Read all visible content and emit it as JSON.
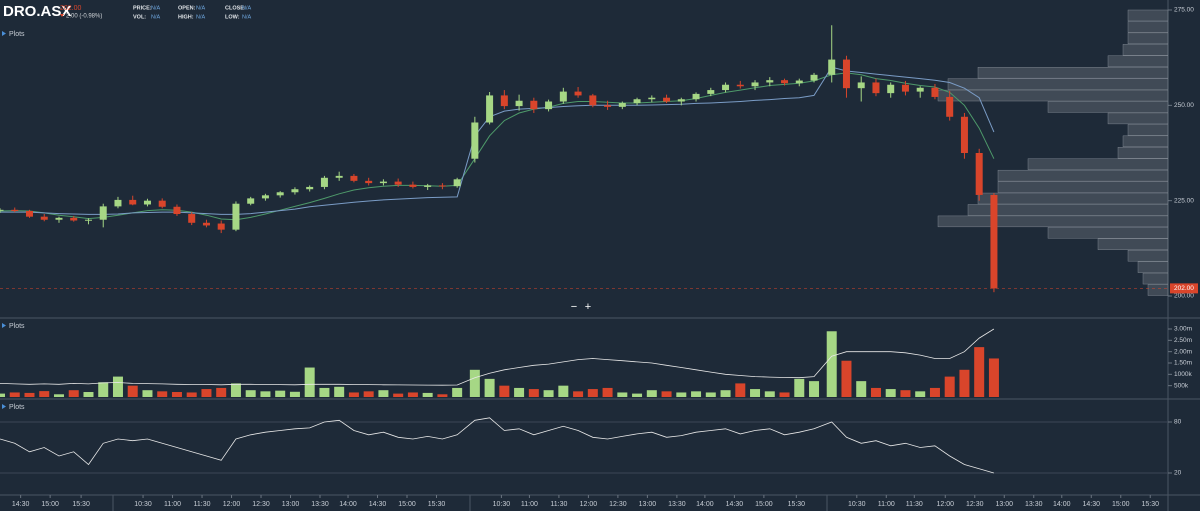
{
  "header": {
    "symbol": "DRO.ASX",
    "price": "202.00",
    "change": "2.00 (-0.98%)",
    "fields": [
      {
        "label": "PRICE:",
        "value": "N/A"
      },
      {
        "label": "VOL:",
        "value": "N/A"
      },
      {
        "label": "OPEN:",
        "value": "N/A"
      },
      {
        "label": "HIGH:",
        "value": "N/A"
      },
      {
        "label": "CLOSE:",
        "value": "N/A"
      },
      {
        "label": "LOW:",
        "value": "N/A"
      }
    ],
    "panel_label": "Plots",
    "zoom_out": "−",
    "zoom_in": "+"
  },
  "chart_data": [
    {
      "type": "candlestick",
      "up_color": "#a6d785",
      "down_color": "#d9452b",
      "xlim": [
        0,
        39.5
      ],
      "xticks": [
        {
          "value": 0.7,
          "label": "14:30"
        },
        {
          "value": 1.7,
          "label": "15:00"
        },
        {
          "value": 2.75,
          "label": "15:30"
        },
        {
          "value": 4.85,
          "label": "10:30"
        },
        {
          "value": 5.85,
          "label": "11:00"
        },
        {
          "value": 6.85,
          "label": "11:30"
        },
        {
          "value": 7.85,
          "label": "12:00"
        },
        {
          "value": 8.85,
          "label": "12:30"
        },
        {
          "value": 9.85,
          "label": "13:00"
        },
        {
          "value": 10.85,
          "label": "13:30"
        },
        {
          "value": 11.8,
          "label": "14:00"
        },
        {
          "value": 12.8,
          "label": "14:30"
        },
        {
          "value": 13.8,
          "label": "15:00"
        },
        {
          "value": 14.8,
          "label": "15:30"
        },
        {
          "value": 17.0,
          "label": "10:30"
        },
        {
          "value": 17.95,
          "label": "11:00"
        },
        {
          "value": 18.95,
          "label": "11:30"
        },
        {
          "value": 19.95,
          "label": "12:00"
        },
        {
          "value": 20.95,
          "label": "12:30"
        },
        {
          "value": 21.95,
          "label": "13:00"
        },
        {
          "value": 22.95,
          "label": "13:30"
        },
        {
          "value": 23.9,
          "label": "14:00"
        },
        {
          "value": 24.9,
          "label": "14:30"
        },
        {
          "value": 25.9,
          "label": "15:00"
        },
        {
          "value": 27.0,
          "label": "15:30"
        },
        {
          "value": 29.05,
          "label": "10:30"
        },
        {
          "value": 30.05,
          "label": "11:00"
        },
        {
          "value": 31.0,
          "label": "11:30"
        },
        {
          "value": 32.05,
          "label": "12:00"
        },
        {
          "value": 33.05,
          "label": "12:30"
        },
        {
          "value": 34.05,
          "label": "13:00"
        },
        {
          "value": 35.05,
          "label": "13:30"
        },
        {
          "value": 36.0,
          "label": "14:00"
        },
        {
          "value": 37.0,
          "label": "14:30"
        },
        {
          "value": 38.0,
          "label": "15:00"
        },
        {
          "value": 39.0,
          "label": "15:30"
        }
      ],
      "ylim": [
        200,
        275
      ],
      "yticks": [
        {
          "value": 200,
          "label": "200.00"
        },
        {
          "value": 225,
          "label": "225.00"
        },
        {
          "value": 250,
          "label": "250.00"
        },
        {
          "value": 275,
          "label": "275.00"
        }
      ],
      "last_price": {
        "value": 202,
        "label": "202.00"
      },
      "last_color": "#d9452b",
      "x": [
        0,
        0.5,
        1,
        1.5,
        2,
        2.5,
        3,
        3.5,
        4,
        4.5,
        5,
        5.5,
        6,
        6.5,
        7,
        7.5,
        8,
        8.5,
        9,
        9.5,
        10,
        10.5,
        11,
        11.5,
        12,
        12.5,
        13,
        13.5,
        14,
        14.5,
        15,
        15.5,
        16.1,
        16.6,
        17.1,
        17.6,
        18.1,
        18.6,
        19.1,
        19.6,
        20.1,
        20.6,
        21.1,
        21.6,
        22.1,
        22.6,
        23.1,
        23.6,
        24.1,
        24.6,
        25.1,
        25.6,
        26.1,
        26.6,
        27.1,
        27.6,
        28.2,
        28.7,
        29.2,
        29.7,
        30.2,
        30.7,
        31.2,
        31.7,
        32.2,
        32.7,
        33.2,
        33.7
      ],
      "open": [
        222.4,
        222.6,
        222.3,
        220.8,
        220.0,
        220.5,
        219.8,
        220.0,
        223.5,
        225.2,
        224.0,
        225.0,
        223.4,
        221.5,
        219.2,
        219.0,
        217.4,
        224.2,
        225.6,
        226.4,
        227.2,
        228.0,
        228.6,
        231.0,
        231.5,
        230.2,
        229.6,
        230.0,
        229.2,
        228.6,
        229.0,
        228.8,
        236.0,
        245.5,
        252.6,
        249.8,
        251.2,
        249.0,
        251.0,
        253.6,
        252.6,
        250.0,
        249.6,
        250.6,
        251.6,
        252.0,
        251.0,
        251.6,
        253.0,
        254.0,
        255.4,
        255.0,
        256.0,
        256.6,
        255.8,
        256.5,
        258.0,
        262.0,
        254.5,
        256.0,
        253.2,
        255.4,
        253.6,
        254.6,
        252.2,
        247.0,
        237.5,
        226.5
      ],
      "high": [
        223.0,
        223.2,
        222.6,
        221.5,
        220.8,
        221.0,
        220.4,
        224.2,
        226.0,
        226.3,
        225.5,
        225.6,
        224.0,
        222.0,
        220.0,
        219.8,
        224.8,
        226.0,
        226.8,
        227.5,
        228.5,
        229.0,
        231.5,
        232.6,
        232.0,
        231.0,
        230.6,
        230.8,
        230.0,
        229.4,
        229.6,
        231.0,
        247.0,
        253.5,
        254.0,
        252.8,
        252.0,
        251.5,
        254.6,
        254.8,
        253.0,
        251.2,
        251.0,
        252.0,
        252.6,
        252.8,
        252.0,
        253.4,
        254.6,
        256.0,
        256.4,
        256.6,
        257.4,
        257.0,
        257.0,
        258.5,
        271.0,
        263.0,
        257.6,
        257.0,
        256.0,
        256.4,
        255.0,
        255.6,
        253.8,
        248.0,
        238.6,
        227.0
      ],
      "low": [
        221.8,
        222.0,
        220.5,
        219.6,
        219.2,
        219.5,
        218.8,
        218.0,
        223.0,
        223.8,
        223.5,
        223.0,
        221.0,
        218.6,
        218.0,
        216.5,
        217.0,
        223.8,
        225.0,
        225.8,
        226.6,
        227.4,
        228.0,
        230.2,
        229.8,
        229.0,
        229.0,
        228.6,
        228.2,
        227.8,
        228.0,
        228.4,
        235.0,
        245.0,
        249.0,
        248.6,
        248.0,
        248.4,
        250.4,
        252.0,
        249.5,
        248.8,
        249.0,
        250.0,
        250.8,
        250.6,
        250.0,
        251.0,
        252.4,
        253.4,
        254.4,
        254.0,
        255.0,
        255.2,
        255.0,
        256.0,
        256.0,
        252.0,
        251.0,
        252.4,
        252.0,
        252.6,
        252.0,
        251.6,
        246.0,
        236.0,
        225.0,
        201.0
      ],
      "close": [
        222.6,
        222.3,
        220.8,
        220.0,
        220.5,
        219.8,
        220.0,
        223.5,
        225.2,
        224.0,
        225.0,
        223.4,
        221.5,
        219.2,
        218.5,
        217.4,
        224.2,
        225.6,
        226.4,
        227.2,
        228.0,
        228.6,
        231.0,
        231.5,
        230.2,
        229.6,
        230.0,
        229.2,
        228.6,
        229.0,
        228.8,
        230.6,
        245.5,
        252.6,
        249.8,
        251.2,
        249.0,
        251.0,
        253.6,
        252.6,
        250.0,
        249.6,
        250.6,
        251.6,
        252.0,
        251.0,
        251.6,
        253.0,
        254.0,
        255.4,
        255.0,
        256.0,
        256.6,
        255.8,
        256.5,
        258.0,
        262.0,
        254.5,
        256.0,
        253.2,
        255.4,
        253.6,
        254.6,
        252.2,
        247.0,
        237.5,
        226.5,
        202.0
      ],
      "overlays": [
        {
          "color": "#4e9a6a",
          "values": [
            222.3,
            222.4,
            222.3,
            221.8,
            221.2,
            220.8,
            220.3,
            220.6,
            221.2,
            221.8,
            222.4,
            222.6,
            222.5,
            222.0,
            221.2,
            220.2,
            220.0,
            220.6,
            221.5,
            222.5,
            223.5,
            224.5,
            225.6,
            226.8,
            227.8,
            228.4,
            228.8,
            229.0,
            229.0,
            228.9,
            228.8,
            229.0,
            236,
            242,
            246,
            248,
            249,
            249.5,
            250.5,
            251,
            251,
            250.8,
            250.6,
            250.6,
            250.8,
            251,
            251.2,
            251.8,
            252.6,
            253.4,
            254,
            254.6,
            255.2,
            255.5,
            255.8,
            256.4,
            258,
            258.5,
            258,
            257,
            256.5,
            255.8,
            255.2,
            254.8,
            253.4,
            250,
            244,
            236
          ]
        },
        {
          "color": "#7a9cc6",
          "values": [
            222,
            222,
            222,
            221.8,
            221.6,
            221.5,
            221.4,
            221.4,
            221.5,
            221.8,
            221.9,
            222,
            222,
            221.8,
            221.6,
            221.4,
            221.4,
            221.6,
            222,
            222.4,
            222.8,
            223.4,
            223.8,
            224.2,
            224.6,
            224.9,
            225.2,
            225.4,
            225.6,
            225.8,
            225.9,
            226,
            242,
            247,
            248.5,
            249,
            249.2,
            249.4,
            249.7,
            249.9,
            250,
            250,
            250,
            250,
            250.1,
            250.2,
            250.3,
            250.5,
            250.6,
            250.8,
            251,
            251.3,
            251.5,
            251.8,
            252,
            252.6,
            260,
            259,
            258.6,
            258.2,
            257.8,
            257.4,
            257,
            256.6,
            256,
            254.5,
            252,
            243
          ]
        }
      ],
      "volume_profile": {
        "color": "#5c6570",
        "bins": [
          200,
          203,
          206,
          209,
          212,
          215,
          218,
          221,
          224,
          227,
          230,
          233,
          236,
          239,
          242,
          245,
          248,
          251,
          254,
          257,
          260,
          263,
          266,
          269,
          272,
          275
        ],
        "values": [
          20,
          25,
          30,
          40,
          70,
          120,
          230,
          200,
          190,
          170,
          170,
          140,
          50,
          45,
          40,
          60,
          120,
          230,
          220,
          190,
          60,
          45,
          40,
          40,
          40
        ]
      }
    },
    {
      "type": "bar",
      "ylim": [
        0,
        3000000
      ],
      "yticks": [
        {
          "value": 500000,
          "label": "500k"
        },
        {
          "value": 1000000,
          "label": "1000k"
        },
        {
          "value": 1500000,
          "label": "1.50m"
        },
        {
          "value": 2000000,
          "label": "2.00m"
        },
        {
          "value": 2500000,
          "label": "2.50m"
        },
        {
          "value": 3000000,
          "label": "3.00m"
        }
      ],
      "values": [
        150000,
        200000,
        180000,
        260000,
        120000,
        300000,
        220000,
        650000,
        900000,
        500000,
        300000,
        250000,
        220000,
        200000,
        350000,
        400000,
        600000,
        300000,
        250000,
        280000,
        230000,
        1300000,
        400000,
        450000,
        200000,
        250000,
        300000,
        150000,
        200000,
        180000,
        120000,
        400000,
        1200000,
        800000,
        500000,
        400000,
        350000,
        300000,
        500000,
        250000,
        350000,
        400000,
        200000,
        150000,
        300000,
        250000,
        200000,
        250000,
        200000,
        300000,
        600000,
        350000,
        250000,
        200000,
        800000,
        700000,
        2900000,
        1600000,
        700000,
        400000,
        350000,
        300000,
        250000,
        400000,
        900000,
        1200000,
        2200000,
        1700000
      ],
      "average": {
        "color": "#e8e8e8",
        "values": [
          600000,
          580000,
          560000,
          580000,
          560000,
          600000,
          580000,
          620000,
          640000,
          600000,
          590000,
          580000,
          560000,
          550000,
          550000,
          540000,
          560000,
          560000,
          550000,
          545000,
          540000,
          560000,
          560000,
          560000,
          550000,
          545000,
          540000,
          535000,
          530000,
          525000,
          520000,
          530000,
          850000,
          1050000,
          1200000,
          1300000,
          1400000,
          1450000,
          1550000,
          1650000,
          1700000,
          1650000,
          1600000,
          1550000,
          1500000,
          1400000,
          1300000,
          1200000,
          1100000,
          1000000,
          950000,
          900000,
          880000,
          860000,
          850000,
          900000,
          1800000,
          2000000,
          2000000,
          2000000,
          2000000,
          1950000,
          1850000,
          1700000,
          1700000,
          2000000,
          2600000,
          3000000
        ]
      }
    },
    {
      "type": "line",
      "color": "#e8e8e8",
      "ylim": [
        0,
        100
      ],
      "yticks": [
        20,
        80
      ],
      "values": [
        60,
        55,
        45,
        50,
        40,
        45,
        30,
        55,
        60,
        58,
        60,
        55,
        50,
        45,
        40,
        35,
        60,
        65,
        68,
        70,
        72,
        73,
        80,
        82,
        70,
        65,
        68,
        62,
        60,
        63,
        60,
        65,
        82,
        85,
        70,
        72,
        65,
        70,
        75,
        70,
        62,
        60,
        63,
        66,
        68,
        62,
        64,
        68,
        70,
        72,
        66,
        70,
        72,
        65,
        68,
        72,
        80,
        62,
        55,
        58,
        52,
        55,
        50,
        52,
        40,
        30,
        25,
        20
      ]
    }
  ]
}
